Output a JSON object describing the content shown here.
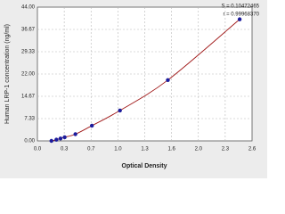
{
  "chart_data": {
    "type": "scatter",
    "stats": [
      "S = 0.10472465",
      "r = 0.99968370"
    ],
    "xlabel": "Optical Density",
    "ylabel": "Human LRP-1 concentration (ng/ml)",
    "x": [
      0.17,
      0.23,
      0.28,
      0.33,
      0.46,
      0.66,
      1.0,
      1.58,
      2.45
    ],
    "series": [
      {
        "color": "#1c1c9c",
        "values": [
          0,
          0.4,
          0.8,
          1.2,
          2.2,
          5,
          10,
          20,
          40
        ]
      }
    ],
    "fit_line": true,
    "fit_color": "#a01818",
    "xlim": [
      0,
      2.6
    ],
    "xticks": [
      {
        "value": 0,
        "label": "0.0"
      },
      {
        "value": 0.325,
        "label": "0.3"
      },
      {
        "value": 0.65,
        "label": "0.7"
      },
      {
        "value": 0.975,
        "label": "1.0"
      },
      1.3,
      {
        "value": 1.625,
        "label": "1.6"
      },
      {
        "value": 1.95,
        "label": "2.0"
      },
      {
        "value": 2.275,
        "label": "2.3"
      },
      2.6
    ],
    "ylim": [
      0,
      44
    ],
    "yticks": [
      {
        "value": 0,
        "label": "0.00"
      },
      {
        "value": 7.333,
        "label": "7.33"
      },
      {
        "value": 14.667,
        "label": "14.67"
      },
      {
        "value": 22,
        "label": "22.00"
      },
      {
        "value": 29.333,
        "label": "29.33"
      },
      {
        "value": 36.667,
        "label": "36.67"
      },
      {
        "value": 44,
        "label": "44.00"
      }
    ],
    "grid": true
  }
}
